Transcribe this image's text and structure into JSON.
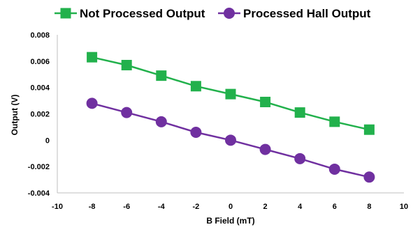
{
  "chart_data": {
    "type": "line",
    "xlabel": "B Field (mT)",
    "ylabel": "Output (V)",
    "xlim": [
      -10,
      10
    ],
    "ylim": [
      -0.004,
      0.008
    ],
    "x_ticks": [
      "-10",
      "-8",
      "-6",
      "-4",
      "-2",
      "0",
      "2",
      "4",
      "6",
      "8",
      "10"
    ],
    "y_ticks": [
      "-0.004",
      "-0.002",
      "0",
      "0.002",
      "0.004",
      "0.006",
      "0.008"
    ],
    "grid": false,
    "legend_position": "top",
    "series": [
      {
        "name": "Not Processed Output",
        "color": "#22b14c",
        "marker": "square",
        "x": [
          -8,
          -6,
          -4,
          -2,
          0,
          2,
          4,
          6,
          8
        ],
        "y": [
          0.0063,
          0.0057,
          0.0049,
          0.0041,
          0.0035,
          0.0029,
          0.0021,
          0.0014,
          0.0008
        ]
      },
      {
        "name": "Processed Hall Output",
        "color": "#7030a0",
        "marker": "circle",
        "x": [
          -8,
          -6,
          -4,
          -2,
          0,
          2,
          4,
          6,
          8
        ],
        "y": [
          0.0028,
          0.0021,
          0.0014,
          0.0006,
          0.0,
          -0.0007,
          -0.0014,
          -0.0022,
          -0.0028
        ]
      }
    ]
  }
}
